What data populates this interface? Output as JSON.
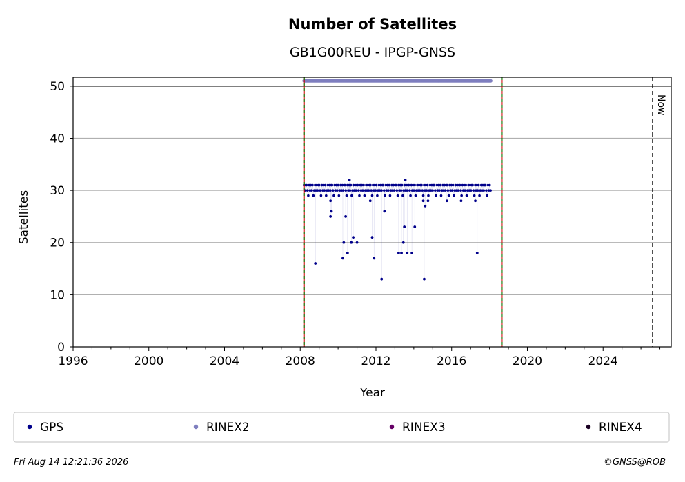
{
  "chart_data": {
    "type": "scatter",
    "title": "Number of Satellites",
    "subtitle": "GB1G00REU - IPGP-GNSS",
    "xlabel": "Year",
    "ylabel": "Satellites",
    "xlim": [
      1996,
      2027.6
    ],
    "ylim": [
      0,
      51.7
    ],
    "xticks": [
      1996,
      2000,
      2004,
      2008,
      2012,
      2016,
      2020,
      2024
    ],
    "yticks": [
      0,
      10,
      20,
      30,
      40,
      50
    ],
    "grid": "y",
    "legend_position": "bottom",
    "reference_line_y": 50,
    "vertical_markers": [
      {
        "x": 2008.2,
        "style": "red-green-dashed"
      },
      {
        "x": 2018.65,
        "style": "red-green-dashed"
      }
    ],
    "now_marker": {
      "x": 2026.62,
      "label": "Now"
    },
    "series": [
      {
        "name": "GPS",
        "color": "#00008b",
        "typical_value": 30,
        "x_range": [
          2008.2,
          2018.1
        ],
        "outliers": [
          {
            "x": 2008.8,
            "y": 16
          },
          {
            "x": 2009.6,
            "y": 25
          },
          {
            "x": 2009.65,
            "y": 26
          },
          {
            "x": 2009.6,
            "y": 28
          },
          {
            "x": 2010.25,
            "y": 17
          },
          {
            "x": 2010.3,
            "y": 20
          },
          {
            "x": 2010.4,
            "y": 25
          },
          {
            "x": 2010.5,
            "y": 18
          },
          {
            "x": 2010.7,
            "y": 20
          },
          {
            "x": 2010.8,
            "y": 21
          },
          {
            "x": 2011.0,
            "y": 20
          },
          {
            "x": 2011.8,
            "y": 21
          },
          {
            "x": 2011.9,
            "y": 17
          },
          {
            "x": 2011.7,
            "y": 28
          },
          {
            "x": 2012.3,
            "y": 13
          },
          {
            "x": 2012.45,
            "y": 26
          },
          {
            "x": 2013.2,
            "y": 18
          },
          {
            "x": 2013.35,
            "y": 18
          },
          {
            "x": 2013.45,
            "y": 20
          },
          {
            "x": 2013.5,
            "y": 23
          },
          {
            "x": 2013.55,
            "y": 32
          },
          {
            "x": 2013.65,
            "y": 18
          },
          {
            "x": 2013.9,
            "y": 18
          },
          {
            "x": 2014.05,
            "y": 23
          },
          {
            "x": 2014.5,
            "y": 28
          },
          {
            "x": 2014.55,
            "y": 13
          },
          {
            "x": 2014.6,
            "y": 27
          },
          {
            "x": 2014.75,
            "y": 28
          },
          {
            "x": 2015.75,
            "y": 28
          },
          {
            "x": 2016.5,
            "y": 28
          },
          {
            "x": 2017.25,
            "y": 28
          },
          {
            "x": 2017.35,
            "y": 18
          },
          {
            "x": 2010.6,
            "y": 32
          }
        ]
      },
      {
        "name": "RINEX2",
        "color": "#7f7fbf",
        "value": 51,
        "x_range": [
          2008.2,
          2018.1
        ]
      },
      {
        "name": "RINEX3",
        "color": "#660066"
      },
      {
        "name": "RINEX4",
        "color": "#1a0022"
      }
    ]
  },
  "footer": {
    "timestamp": "Fri Aug 14 12:21:36 2026",
    "credit": "©GNSS@ROB"
  }
}
